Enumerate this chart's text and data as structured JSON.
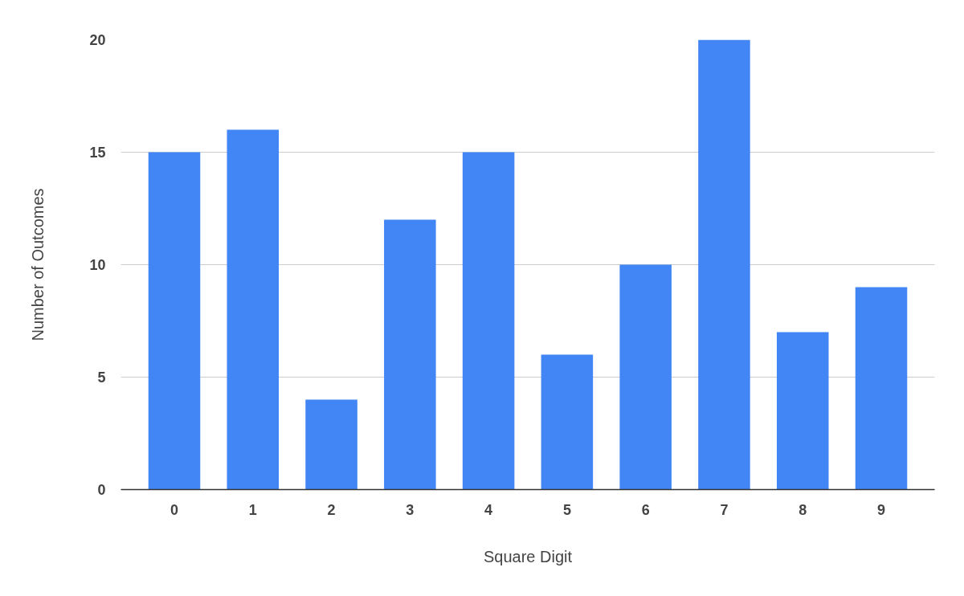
{
  "chart_data": {
    "type": "bar",
    "xlabel": "Square Digit",
    "ylabel": "Number of Outcomes",
    "categories": [
      "0",
      "1",
      "2",
      "3",
      "4",
      "5",
      "6",
      "7",
      "8",
      "9"
    ],
    "values": [
      15,
      16,
      4,
      12,
      15,
      6,
      10,
      20,
      7,
      9
    ],
    "color": "#4285f4",
    "ylim": [
      0,
      20
    ],
    "yticks": [
      0,
      5,
      10,
      15,
      20
    ],
    "grid": "y"
  }
}
